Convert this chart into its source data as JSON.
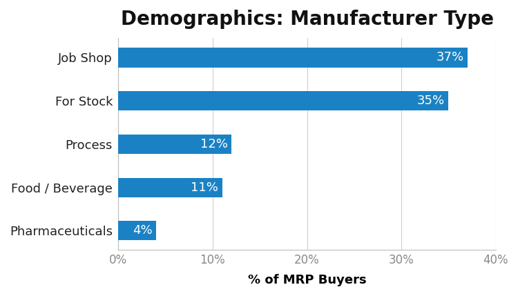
{
  "title": "Demographics: Manufacturer Type",
  "categories": [
    "Pharmaceuticals",
    "Food / Beverage",
    "Process",
    "For Stock",
    "Job Shop"
  ],
  "values": [
    4,
    11,
    12,
    35,
    37
  ],
  "bar_color": "#1a82c4",
  "label_color": "#ffffff",
  "xlabel": "% of MRP Buyers",
  "xlim": [
    0,
    40
  ],
  "xticks": [
    0,
    10,
    20,
    30,
    40
  ],
  "xtick_labels": [
    "0%",
    "10%",
    "20%",
    "30%",
    "40%"
  ],
  "title_fontsize": 20,
  "label_fontsize": 13,
  "xlabel_fontsize": 13,
  "ytick_fontsize": 13,
  "xtick_fontsize": 12,
  "background_color": "#ffffff",
  "grid_color": "#cccccc",
  "bar_height": 0.45
}
